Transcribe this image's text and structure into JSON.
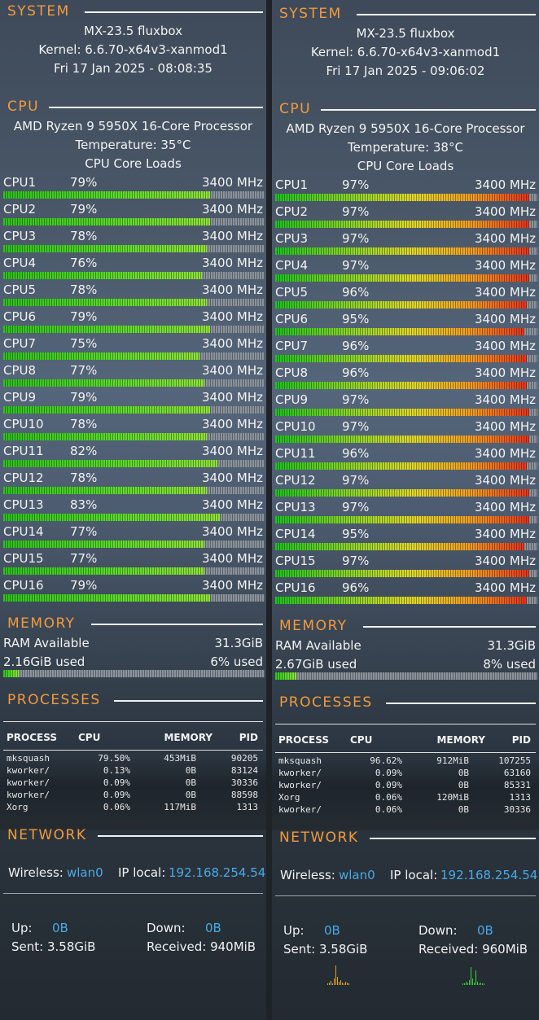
{
  "panels": [
    {
      "system": {
        "title": "SYSTEM",
        "os": "MX-23.5 fluxbox",
        "kernel": "Kernel: 6.6.70-x64v3-xanmod1",
        "datetime": "Fri 17 Jan 2025   -   08:08:35"
      },
      "cpu": {
        "title": "CPU",
        "model": "AMD Ryzen 9 5950X 16-Core Processor",
        "temperature": "Temperature:  35°C",
        "loads_label": "CPU Core Loads",
        "cores": [
          {
            "name": "CPU1",
            "load": "79%",
            "freq": "3400 MHz",
            "value": 79
          },
          {
            "name": "CPU2",
            "load": "79%",
            "freq": "3400 MHz",
            "value": 79
          },
          {
            "name": "CPU3",
            "load": "78%",
            "freq": "3400 MHz",
            "value": 78
          },
          {
            "name": "CPU4",
            "load": "76%",
            "freq": "3400 MHz",
            "value": 76
          },
          {
            "name": "CPU5",
            "load": "78%",
            "freq": "3400 MHz",
            "value": 78
          },
          {
            "name": "CPU6",
            "load": "79%",
            "freq": "3400 MHz",
            "value": 79
          },
          {
            "name": "CPU7",
            "load": "75%",
            "freq": "3400 MHz",
            "value": 75
          },
          {
            "name": "CPU8",
            "load": "77%",
            "freq": "3400 MHz",
            "value": 77
          },
          {
            "name": "CPU9",
            "load": "79%",
            "freq": "3400 MHz",
            "value": 79
          },
          {
            "name": "CPU10",
            "load": "78%",
            "freq": "3400 MHz",
            "value": 78
          },
          {
            "name": "CPU11",
            "load": "82%",
            "freq": "3400 MHz",
            "value": 82
          },
          {
            "name": "CPU12",
            "load": "78%",
            "freq": "3400 MHz",
            "value": 78
          },
          {
            "name": "CPU13",
            "load": "83%",
            "freq": "3400 MHz",
            "value": 83
          },
          {
            "name": "CPU14",
            "load": "77%",
            "freq": "3400 MHz",
            "value": 77
          },
          {
            "name": "CPU15",
            "load": "77%",
            "freq": "3400 MHz",
            "value": 77
          },
          {
            "name": "CPU16",
            "load": "79%",
            "freq": "3400 MHz",
            "value": 79
          }
        ]
      },
      "memory": {
        "title": "MEMORY",
        "available_label": "RAM Available",
        "available": "31.3GiB",
        "used": "2.16GiB used",
        "percent": "6% used",
        "value": 6
      },
      "processes": {
        "title": "PROCESSES",
        "headers": {
          "process": "PROCESS",
          "cpu": "CPU",
          "memory": "MEMORY",
          "pid": "PID"
        },
        "rows": [
          {
            "name": "mksquash",
            "cpu": "79.50%",
            "mem": "453MiB",
            "pid": "90205"
          },
          {
            "name": "kworker/",
            "cpu": "0.13%",
            "mem": "0B",
            "pid": "83124"
          },
          {
            "name": "kworker/",
            "cpu": "0.09%",
            "mem": "0B",
            "pid": "30336"
          },
          {
            "name": "kworker/",
            "cpu": "0.09%",
            "mem": "0B",
            "pid": "88598"
          },
          {
            "name": "Xorg",
            "cpu": "0.06%",
            "mem": "117MiB",
            "pid": "1313"
          }
        ]
      },
      "network": {
        "title": "NETWORK",
        "wireless_label": "Wireless:",
        "iface": "wlan0",
        "ip_label": "IP local:",
        "ip": "192.168.254.54",
        "up_label": "Up:",
        "up": "0B",
        "down_label": "Down:",
        "down": "0B",
        "sent": "Sent: 3.58GiB",
        "received": "Received:  940MiB"
      }
    },
    {
      "system": {
        "title": "SYSTEM",
        "os": "MX-23.5 fluxbox",
        "kernel": "Kernel: 6.6.70-x64v3-xanmod1",
        "datetime": "Fri 17 Jan 2025   -   09:06:02"
      },
      "cpu": {
        "title": "CPU",
        "model": "AMD Ryzen 9 5950X 16-Core Processor",
        "temperature": "Temperature:  38°C",
        "loads_label": "CPU Core Loads",
        "cores": [
          {
            "name": "CPU1",
            "load": "97%",
            "freq": "3400 MHz",
            "value": 97
          },
          {
            "name": "CPU2",
            "load": "97%",
            "freq": "3400 MHz",
            "value": 97
          },
          {
            "name": "CPU3",
            "load": "97%",
            "freq": "3400 MHz",
            "value": 97
          },
          {
            "name": "CPU4",
            "load": "97%",
            "freq": "3400 MHz",
            "value": 97
          },
          {
            "name": "CPU5",
            "load": "96%",
            "freq": "3400 MHz",
            "value": 96
          },
          {
            "name": "CPU6",
            "load": "95%",
            "freq": "3400 MHz",
            "value": 95
          },
          {
            "name": "CPU7",
            "load": "96%",
            "freq": "3400 MHz",
            "value": 96
          },
          {
            "name": "CPU8",
            "load": "96%",
            "freq": "3400 MHz",
            "value": 96
          },
          {
            "name": "CPU9",
            "load": "97%",
            "freq": "3400 MHz",
            "value": 97
          },
          {
            "name": "CPU10",
            "load": "97%",
            "freq": "3400 MHz",
            "value": 97
          },
          {
            "name": "CPU11",
            "load": "96%",
            "freq": "3400 MHz",
            "value": 96
          },
          {
            "name": "CPU12",
            "load": "97%",
            "freq": "3400 MHz",
            "value": 97
          },
          {
            "name": "CPU13",
            "load": "97%",
            "freq": "3400 MHz",
            "value": 97
          },
          {
            "name": "CPU14",
            "load": "95%",
            "freq": "3400 MHz",
            "value": 95
          },
          {
            "name": "CPU15",
            "load": "97%",
            "freq": "3400 MHz",
            "value": 97
          },
          {
            "name": "CPU16",
            "load": "96%",
            "freq": "3400 MHz",
            "value": 96
          }
        ]
      },
      "memory": {
        "title": "MEMORY",
        "available_label": "RAM Available",
        "available": "31.3GiB",
        "used": "2.67GiB used",
        "percent": "8% used",
        "value": 8
      },
      "processes": {
        "title": "PROCESSES",
        "headers": {
          "process": "PROCESS",
          "cpu": "CPU",
          "memory": "MEMORY",
          "pid": "PID"
        },
        "rows": [
          {
            "name": "mksquash",
            "cpu": "96.62%",
            "mem": "912MiB",
            "pid": "107255"
          },
          {
            "name": "kworker/",
            "cpu": "0.09%",
            "mem": "0B",
            "pid": "63160"
          },
          {
            "name": "kworker/",
            "cpu": "0.09%",
            "mem": "0B",
            "pid": "85331"
          },
          {
            "name": "Xorg",
            "cpu": "0.06%",
            "mem": "120MiB",
            "pid": "1313"
          },
          {
            "name": "kworker/",
            "cpu": "0.06%",
            "mem": "0B",
            "pid": "30336"
          }
        ]
      },
      "network": {
        "title": "NETWORK",
        "wireless_label": "Wireless:",
        "iface": "wlan0",
        "ip_label": "IP local:",
        "ip": "192.168.254.54",
        "up_label": "Up:",
        "up": "0B",
        "down_label": "Down:",
        "down": "0B",
        "sent": "Sent: 3.58GiB",
        "received": "Received:  960MiB"
      }
    }
  ],
  "colors": {
    "accent": "#f39a3c",
    "link": "#4aa9e6",
    "bar_bg": "#8a939c"
  }
}
